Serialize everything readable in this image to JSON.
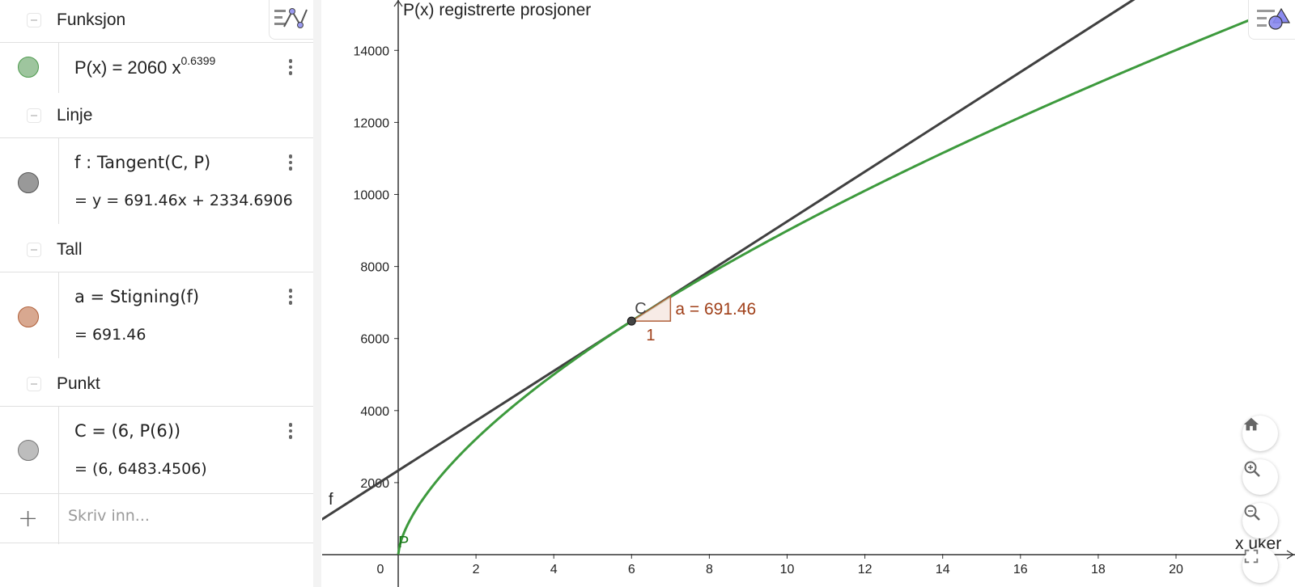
{
  "algebra": {
    "style_bar_icon": "algebra-style-icon",
    "groups": [
      {
        "label": "Funksjon"
      },
      {
        "label": "Linje"
      },
      {
        "label": "Tall"
      },
      {
        "label": "Punkt"
      }
    ],
    "items": [
      {
        "name": "P",
        "definition_prefix": "P(x) = 2060 x",
        "definition_exponent": "0.6399",
        "value": "",
        "color": "#9ec59e",
        "border": "#4e9a4e"
      },
      {
        "name": "f",
        "definition": "f : Tangent(C, P)",
        "value": "= y = 691.46x + 2334.6906",
        "color": "#999999",
        "border": "#555555"
      },
      {
        "name": "a",
        "definition": "a = Stigning(f)",
        "value": "= 691.46",
        "color": "#d8a890",
        "border": "#b0603a"
      },
      {
        "name": "C",
        "definition": "C = (6, P(6))",
        "value": "= (6, 6483.4506)",
        "color": "#bdbdbd",
        "border": "#777777"
      }
    ],
    "input": {
      "placeholder": "Skriv inn..."
    }
  },
  "graphics": {
    "y_axis_label": "P(x) registrerte prosjoner",
    "x_axis_label": "x uker",
    "point_C_label": "C",
    "curve_label": "P",
    "line_label": "f",
    "slope_label": "a = 691.46",
    "slope_run_label": "1",
    "buttons": {
      "home": "home-icon",
      "zoom_in": "zoom-in-icon",
      "zoom_out": "zoom-out-icon",
      "fullscreen": "fullscreen-icon"
    }
  },
  "chart_data": {
    "type": "line",
    "title": "",
    "xlabel": "x uker",
    "ylabel": "P(x) registrerte prosjoner",
    "x_ticks": [
      "0",
      "2",
      "4",
      "6",
      "8",
      "10",
      "12",
      "14",
      "16",
      "18",
      "20"
    ],
    "y_ticks": [
      "2000",
      "4000",
      "6000",
      "8000",
      "10000",
      "12000",
      "14000"
    ],
    "xlim": [
      -2,
      22.6
    ],
    "ylim": [
      -900,
      15400
    ],
    "grid": false,
    "series": [
      {
        "name": "P",
        "expression": "P(x) = 2060 x^0.6399",
        "color": "#3d9a3d"
      },
      {
        "name": "f",
        "expression": "y = 691.46x + 2334.6906",
        "color": "#404040"
      }
    ],
    "points": [
      {
        "name": "C",
        "x": 6,
        "y": 6483.4506
      }
    ],
    "annotations": [
      {
        "text": "a = 691.46",
        "type": "slope",
        "run": 1
      }
    ]
  }
}
